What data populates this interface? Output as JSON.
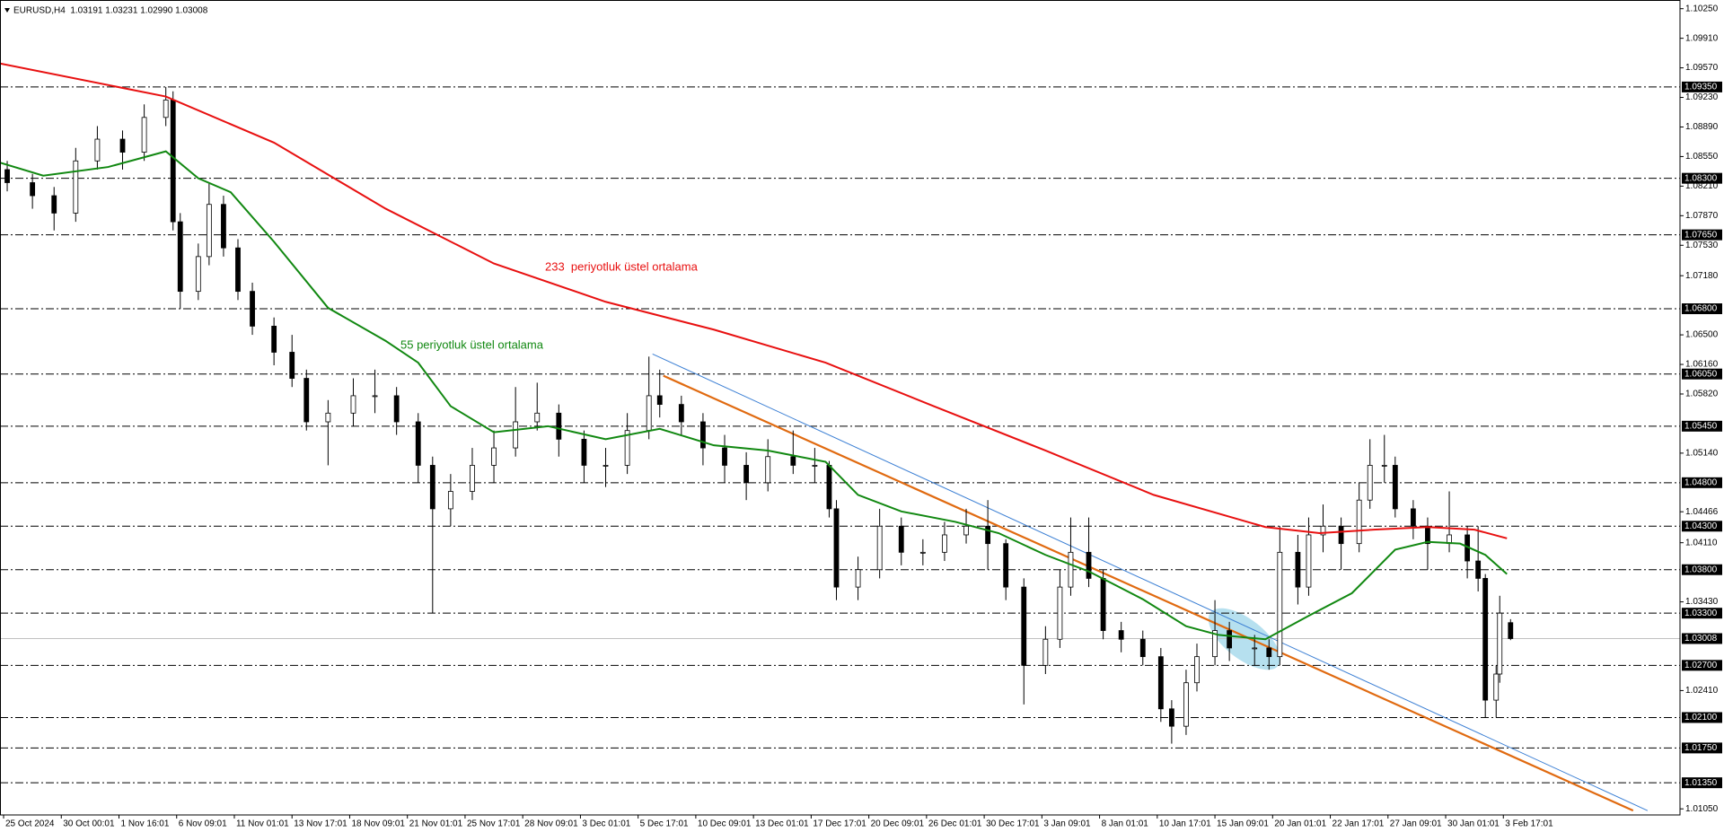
{
  "chart_data": {
    "type": "candlestick",
    "title": "EURUSD,H4  1.03191 1.03231 1.02990 1.03008",
    "xlim": [
      0,
      466
    ],
    "ylim": [
      1.0098,
      1.1035
    ],
    "up_color": "#ffffff",
    "down_color": "#000000",
    "candle_color": "#000000",
    "xticks": [
      {
        "value": 1,
        "label": "25 Oct 2024"
      },
      {
        "value": 17,
        "label": "30 Oct 00:01"
      },
      {
        "value": 33,
        "label": "1 Nov 16:01"
      },
      {
        "value": 49,
        "label": "6 Nov 09:01"
      },
      {
        "value": 65,
        "label": "11 Nov 01:01"
      },
      {
        "value": 81,
        "label": "13 Nov 17:01"
      },
      {
        "value": 97,
        "label": "18 Nov 09:01"
      },
      {
        "value": 113,
        "label": "21 Nov 01:01"
      },
      {
        "value": 129,
        "label": "25 Nov 17:01"
      },
      {
        "value": 145,
        "label": "28 Nov 09:01"
      },
      {
        "value": 161,
        "label": "3 Dec 01:01"
      },
      {
        "value": 177,
        "label": "5 Dec 17:01"
      },
      {
        "value": 193,
        "label": "10 Dec 09:01"
      },
      {
        "value": 209,
        "label": "13 Dec 01:01"
      },
      {
        "value": 225,
        "label": "17 Dec 17:01"
      },
      {
        "value": 241,
        "label": "20 Dec 09:01"
      },
      {
        "value": 257,
        "label": "26 Dec 01:01"
      },
      {
        "value": 273,
        "label": "30 Dec 17:01"
      },
      {
        "value": 289,
        "label": "3 Jan 09:01"
      },
      {
        "value": 305,
        "label": "8 Jan 01:01"
      },
      {
        "value": 321,
        "label": "10 Jan 17:01"
      },
      {
        "value": 337,
        "label": "15 Jan 09:01"
      },
      {
        "value": 353,
        "label": "20 Jan 01:01"
      },
      {
        "value": 369,
        "label": "22 Jan 17:01"
      },
      {
        "value": 385,
        "label": "27 Jan 09:01"
      },
      {
        "value": 401,
        "label": "30 Jan 01:01"
      },
      {
        "value": 417,
        "label": "3 Feb 17:01"
      }
    ],
    "yticks": [
      {
        "value": 1.1025,
        "label": "1.10250"
      },
      {
        "value": 1.0991,
        "label": "1.09910"
      },
      {
        "value": 1.0957,
        "label": "1.09570"
      },
      {
        "value": 1.0923,
        "label": "1.09230"
      },
      {
        "value": 1.0889,
        "label": "1.08890"
      },
      {
        "value": 1.0855,
        "label": "1.08550"
      },
      {
        "value": 1.0821,
        "label": "1.08210"
      },
      {
        "value": 1.0787,
        "label": "1.07870"
      },
      {
        "value": 1.0753,
        "label": "1.07530"
      },
      {
        "value": 1.0718,
        "label": "1.07180"
      },
      {
        "value": 1.065,
        "label": "1.06500"
      },
      {
        "value": 1.0616,
        "label": "1.06160"
      },
      {
        "value": 1.0582,
        "label": "1.05820"
      },
      {
        "value": 1.0514,
        "label": "1.05140"
      },
      {
        "value": 1.04466,
        "label": "1.04466"
      },
      {
        "value": 1.0411,
        "label": "1.04110"
      },
      {
        "value": 1.0343,
        "label": "1.03430"
      },
      {
        "value": 1.0241,
        "label": "1.02410"
      },
      {
        "value": 1.0105,
        "label": "1.01050"
      }
    ],
    "levels": [
      {
        "value": 1.0935,
        "label": "1.09350"
      },
      {
        "value": 1.083,
        "label": "1.08300"
      },
      {
        "value": 1.0765,
        "label": "1.07650"
      },
      {
        "value": 1.068,
        "label": "1.06800"
      },
      {
        "value": 1.0605,
        "label": "1.06050"
      },
      {
        "value": 1.0545,
        "label": "1.05450"
      },
      {
        "value": 1.048,
        "label": "1.04800"
      },
      {
        "value": 1.043,
        "label": "1.04300"
      },
      {
        "value": 1.038,
        "label": "1.03800"
      },
      {
        "value": 1.033,
        "label": "1.03300"
      },
      {
        "value": 1.027,
        "label": "1.02700"
      },
      {
        "value": 1.021,
        "label": "1.02100"
      },
      {
        "value": 1.0175,
        "label": "1.01750"
      },
      {
        "value": 1.0135,
        "label": "1.01350"
      }
    ],
    "price_line": {
      "value": 1.03008,
      "label": "1.03008"
    },
    "candles": [
      [
        2,
        1.084,
        1.085,
        1.0815,
        1.0825
      ],
      [
        9,
        1.0825,
        1.0835,
        1.0795,
        1.081
      ],
      [
        15,
        1.081,
        1.082,
        1.077,
        1.079
      ],
      [
        21,
        1.079,
        1.0865,
        1.078,
        1.085
      ],
      [
        27,
        1.085,
        1.089,
        1.084,
        1.0875
      ],
      [
        34,
        1.0875,
        1.0885,
        1.084,
        1.086
      ],
      [
        40,
        1.086,
        1.0915,
        1.085,
        1.09
      ],
      [
        46,
        1.09,
        1.0935,
        1.089,
        1.092
      ],
      [
        48,
        1.092,
        1.093,
        1.077,
        1.078
      ],
      [
        50,
        1.078,
        1.079,
        1.068,
        1.07
      ],
      [
        55,
        1.07,
        1.0755,
        1.069,
        1.074
      ],
      [
        58,
        1.074,
        1.0825,
        1.073,
        1.08
      ],
      [
        62,
        1.08,
        1.081,
        1.074,
        1.075
      ],
      [
        66,
        1.075,
        1.076,
        1.069,
        1.07
      ],
      [
        70,
        1.07,
        1.071,
        1.065,
        1.066
      ],
      [
        76,
        1.066,
        1.067,
        1.0615,
        1.063
      ],
      [
        81,
        1.063,
        1.065,
        1.059,
        1.06
      ],
      [
        85,
        1.06,
        1.061,
        1.054,
        1.055
      ],
      [
        91,
        1.055,
        1.0575,
        1.05,
        1.056
      ],
      [
        98,
        1.056,
        1.06,
        1.0545,
        1.058
      ],
      [
        104,
        1.058,
        1.061,
        1.056,
        1.058
      ],
      [
        110,
        1.058,
        1.059,
        1.0535,
        1.055
      ],
      [
        116,
        1.055,
        1.056,
        1.048,
        1.05
      ],
      [
        120,
        1.05,
        1.051,
        1.033,
        1.045
      ],
      [
        125,
        1.045,
        1.049,
        1.043,
        1.047
      ],
      [
        131,
        1.047,
        1.052,
        1.046,
        1.05
      ],
      [
        137,
        1.05,
        1.054,
        1.048,
        1.052
      ],
      [
        143,
        1.052,
        1.059,
        1.051,
        1.055
      ],
      [
        149,
        1.055,
        1.0595,
        1.054,
        1.056
      ],
      [
        155,
        1.056,
        1.057,
        1.051,
        1.053
      ],
      [
        162,
        1.053,
        1.054,
        1.048,
        1.05
      ],
      [
        168,
        1.05,
        1.052,
        1.0475,
        1.05
      ],
      [
        174,
        1.05,
        1.056,
        1.049,
        1.054
      ],
      [
        180,
        1.054,
        1.0625,
        1.053,
        1.058
      ],
      [
        183,
        1.058,
        1.061,
        1.0555,
        1.057
      ],
      [
        189,
        1.057,
        1.058,
        1.0535,
        1.055
      ],
      [
        195,
        1.055,
        1.056,
        1.05,
        1.052
      ],
      [
        201,
        1.052,
        1.0535,
        1.048,
        1.05
      ],
      [
        207,
        1.05,
        1.0515,
        1.046,
        1.048
      ],
      [
        213,
        1.048,
        1.053,
        1.047,
        1.051
      ],
      [
        220,
        1.051,
        1.054,
        1.049,
        1.05
      ],
      [
        226,
        1.05,
        1.052,
        1.048,
        1.05
      ],
      [
        230,
        1.05,
        1.0505,
        1.044,
        1.045
      ],
      [
        232,
        1.045,
        1.046,
        1.0345,
        1.036
      ],
      [
        238,
        1.036,
        1.0395,
        1.0345,
        1.038
      ],
      [
        244,
        1.038,
        1.045,
        1.037,
        1.043
      ],
      [
        250,
        1.043,
        1.044,
        1.0385,
        1.04
      ],
      [
        256,
        1.04,
        1.0415,
        1.0385,
        1.04
      ],
      [
        262,
        1.04,
        1.0435,
        1.039,
        1.042
      ],
      [
        268,
        1.042,
        1.045,
        1.041,
        1.043
      ],
      [
        274,
        1.043,
        1.046,
        1.038,
        1.041
      ],
      [
        279,
        1.041,
        1.0415,
        1.0345,
        1.036
      ],
      [
        284,
        1.036,
        1.037,
        1.0225,
        1.027
      ],
      [
        290,
        1.027,
        1.0315,
        1.026,
        1.03
      ],
      [
        294,
        1.03,
        1.038,
        1.029,
        1.036
      ],
      [
        297,
        1.036,
        1.044,
        1.035,
        1.04
      ],
      [
        302,
        1.04,
        1.044,
        1.036,
        1.037
      ],
      [
        306,
        1.037,
        1.038,
        1.03,
        1.031
      ],
      [
        311,
        1.031,
        1.032,
        1.0285,
        1.03
      ],
      [
        317,
        1.03,
        1.031,
        1.027,
        1.028
      ],
      [
        322,
        1.028,
        1.029,
        1.0205,
        1.022
      ],
      [
        325,
        1.022,
        1.023,
        1.018,
        1.02
      ],
      [
        329,
        1.02,
        1.0265,
        1.019,
        1.025
      ],
      [
        332,
        1.025,
        1.0295,
        1.024,
        1.028
      ],
      [
        337,
        1.028,
        1.0345,
        1.027,
        1.031
      ],
      [
        341,
        1.031,
        1.032,
        1.0275,
        1.029
      ],
      [
        348,
        1.029,
        1.0305,
        1.027,
        1.029
      ],
      [
        352,
        1.029,
        1.03,
        1.0265,
        1.028
      ],
      [
        355,
        1.028,
        1.043,
        1.027,
        1.04
      ],
      [
        360,
        1.04,
        1.042,
        1.034,
        1.036
      ],
      [
        363,
        1.036,
        1.044,
        1.035,
        1.042
      ],
      [
        367,
        1.042,
        1.0455,
        1.04,
        1.043
      ],
      [
        372,
        1.043,
        1.044,
        1.038,
        1.041
      ],
      [
        377,
        1.041,
        1.048,
        1.04,
        1.046
      ],
      [
        380,
        1.046,
        1.053,
        1.045,
        1.05
      ],
      [
        384,
        1.05,
        1.0535,
        1.048,
        1.05
      ],
      [
        387,
        1.05,
        1.051,
        1.044,
        1.045
      ],
      [
        392,
        1.045,
        1.046,
        1.0415,
        1.043
      ],
      [
        396,
        1.043,
        1.044,
        1.038,
        1.041
      ],
      [
        402,
        1.041,
        1.047,
        1.04,
        1.042
      ],
      [
        407,
        1.042,
        1.043,
        1.037,
        1.039
      ],
      [
        410,
        1.039,
        1.043,
        1.0355,
        1.037
      ],
      [
        412,
        1.037,
        1.0375,
        1.021,
        1.023
      ],
      [
        415,
        1.023,
        1.027,
        1.021,
        1.026
      ],
      [
        416,
        1.026,
        1.035,
        1.025,
        1.033
      ],
      [
        419,
        1.03191,
        1.03231,
        1.0299,
        1.03008
      ]
    ],
    "series": [
      {
        "name": "233  periyotluk üstel ortalama",
        "color": "#e81010",
        "x": [
          0,
          46,
          76,
          107,
          137,
          168,
          198,
          229,
          259,
          290,
          320,
          351,
          366,
          381,
          396,
          409,
          418
        ],
        "values": [
          1.0962,
          1.0924,
          1.0871,
          1.0795,
          1.0732,
          1.0688,
          1.0656,
          1.0618,
          1.0568,
          1.0517,
          1.0466,
          1.0429,
          1.0422,
          1.0426,
          1.0429,
          1.0426,
          1.0416
        ]
      },
      {
        "name": "55 periyotluk üstel ortalama",
        "color": "#118811",
        "x": [
          0,
          12,
          30,
          46,
          55,
          64,
          76,
          91,
          107,
          116,
          125,
          137,
          152,
          168,
          183,
          198,
          213,
          229,
          238,
          250,
          265,
          277,
          290,
          302,
          317,
          329,
          338,
          351,
          363,
          375,
          387,
          396,
          405,
          412,
          418
        ],
        "values": [
          1.0848,
          1.0833,
          1.0843,
          1.0861,
          1.083,
          1.0814,
          1.0757,
          1.0681,
          1.0643,
          1.0618,
          1.0568,
          1.0538,
          1.0545,
          1.053,
          1.0542,
          1.0523,
          1.0517,
          1.0504,
          1.0466,
          1.0447,
          1.0435,
          1.0422,
          1.0397,
          1.0378,
          1.0346,
          1.0315,
          1.0305,
          1.03,
          1.0327,
          1.0353,
          1.0403,
          1.0412,
          1.041,
          1.0397,
          1.0375
        ]
      }
    ],
    "trendlines": [
      {
        "color": "#e06a10",
        "x": [
          184,
          453
        ],
        "values": [
          1.0603,
          1.0103
        ]
      },
      {
        "color": "#3b7fd4",
        "x": [
          181,
          457
        ],
        "values": [
          1.0628,
          1.0103
        ]
      }
    ]
  }
}
